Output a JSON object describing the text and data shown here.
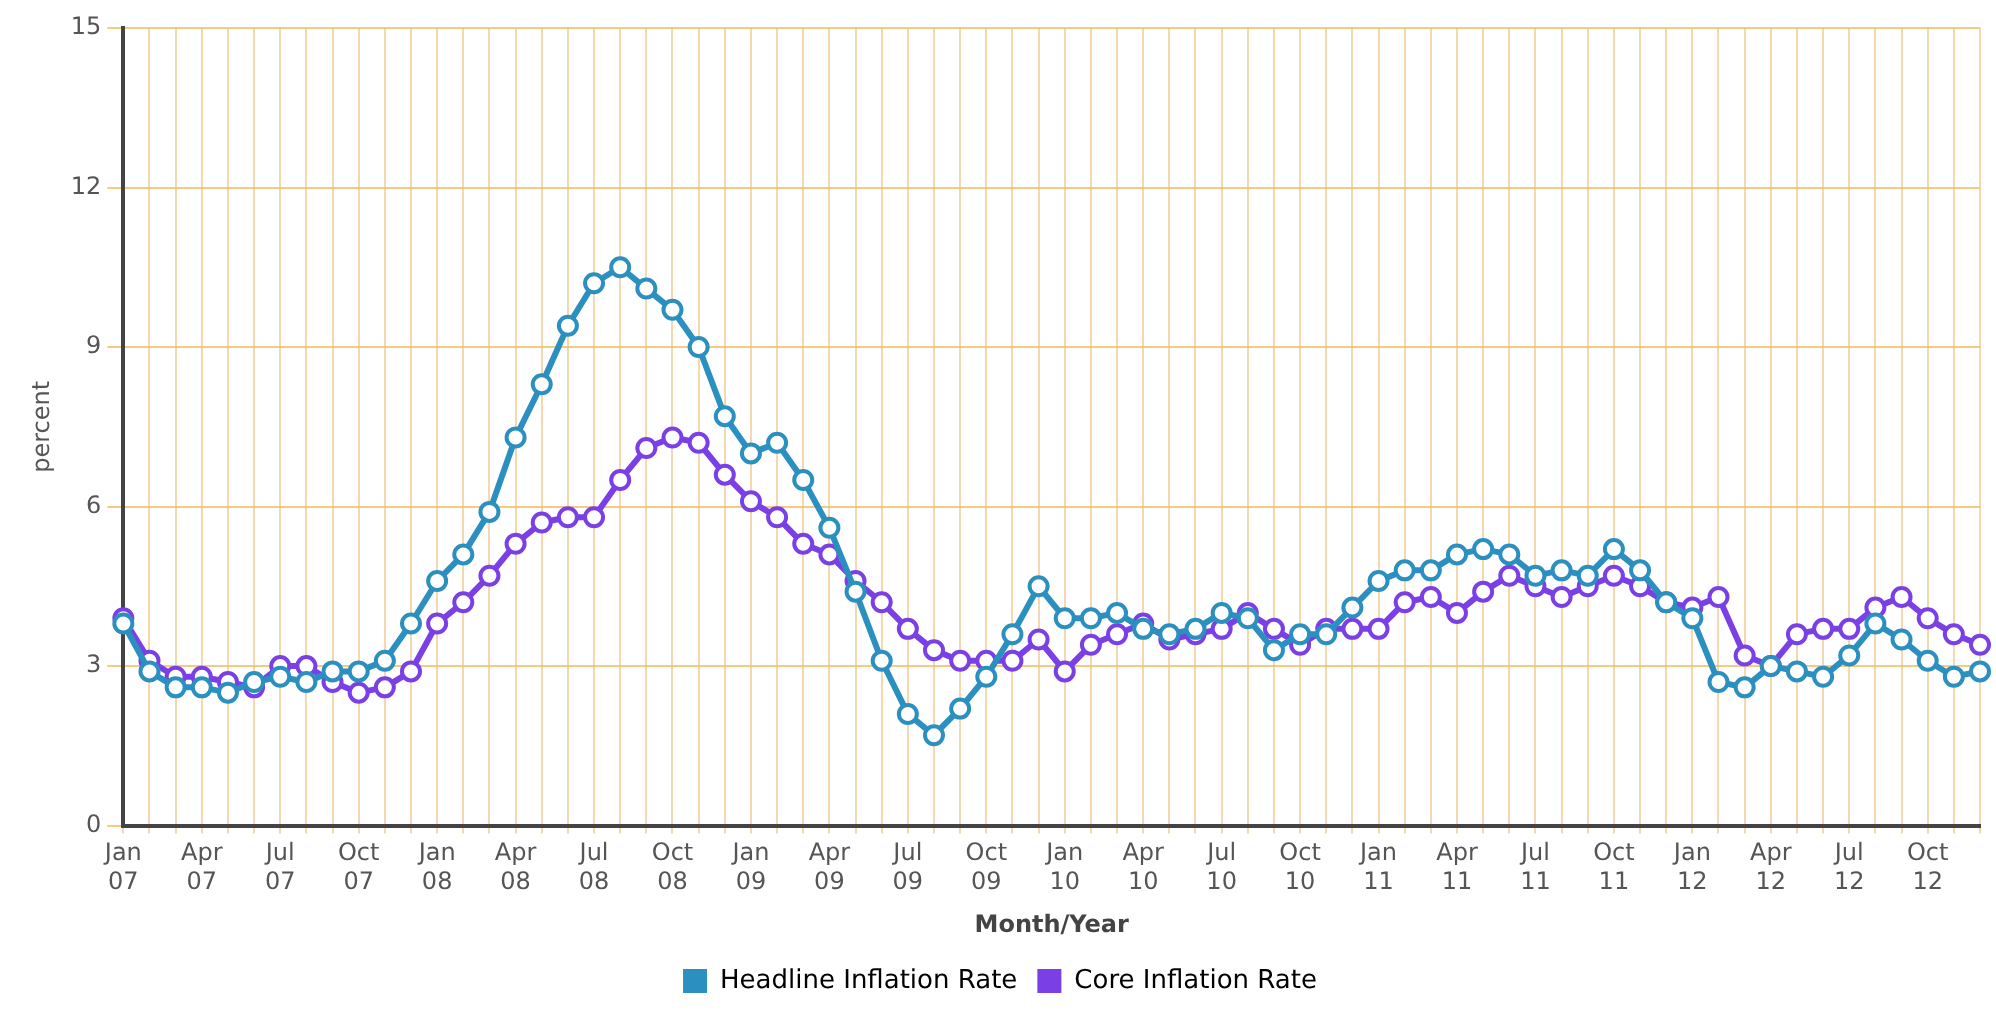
{
  "chart_data": {
    "type": "line",
    "xlabel": "Month/Year",
    "ylabel": "percent",
    "categories": [
      "Jan 07",
      null,
      null,
      "Apr 07",
      null,
      null,
      "Jul 07",
      null,
      null,
      "Oct 07",
      null,
      null,
      "Jan 08",
      null,
      null,
      "Apr 08",
      null,
      null,
      "Jul 08",
      null,
      null,
      "Oct 08",
      null,
      null,
      "Jan 09",
      null,
      null,
      "Apr 09",
      null,
      null,
      "Jul 09",
      null,
      null,
      "Oct 09",
      null,
      null,
      "Jan 10",
      null,
      null,
      "Apr 10",
      null,
      null,
      "Jul 10",
      null,
      null,
      "Oct 10",
      null,
      null,
      "Jan 11",
      null,
      null,
      "Apr 11",
      null,
      null,
      "Jul 11",
      null,
      null,
      "Oct 11",
      null,
      null,
      "Jan 12",
      null,
      null,
      "Apr 12",
      null,
      null,
      "Jul 12",
      null,
      null,
      "Oct 12",
      null,
      null
    ],
    "series": [
      {
        "name": "Headline Inflation Rate",
        "color": "#2b8fc0",
        "values": [
          3.8,
          2.9,
          2.6,
          2.6,
          2.5,
          2.7,
          2.8,
          2.7,
          2.9,
          2.9,
          3.1,
          3.8,
          4.6,
          5.1,
          5.9,
          7.3,
          8.3,
          9.4,
          10.2,
          10.5,
          10.1,
          9.7,
          9.0,
          7.7,
          7.0,
          7.2,
          6.5,
          5.6,
          4.4,
          3.1,
          2.1,
          1.7,
          2.2,
          2.8,
          3.6,
          4.5,
          3.9,
          3.9,
          4.0,
          3.7,
          3.6,
          3.7,
          4.0,
          3.9,
          3.3,
          3.6,
          3.6,
          4.1,
          4.6,
          4.8,
          4.8,
          5.1,
          5.2,
          5.1,
          4.7,
          4.8,
          4.7,
          5.2,
          4.8,
          4.2,
          3.9,
          2.7,
          2.6,
          3.0,
          2.9,
          2.8,
          3.2,
          3.8,
          3.5,
          3.1,
          2.8,
          2.9
        ]
      },
      {
        "name": "Core Inflation Rate",
        "color": "#7b3fe6",
        "values": [
          3.9,
          3.1,
          2.8,
          2.8,
          2.7,
          2.6,
          3.0,
          3.0,
          2.7,
          2.5,
          2.6,
          2.9,
          3.8,
          4.2,
          4.7,
          5.3,
          5.7,
          5.8,
          5.8,
          6.5,
          7.1,
          7.3,
          7.2,
          6.6,
          6.1,
          5.8,
          5.3,
          5.1,
          4.6,
          4.2,
          3.7,
          3.3,
          3.1,
          3.1,
          3.1,
          3.5,
          2.9,
          3.4,
          3.6,
          3.8,
          3.5,
          3.6,
          3.7,
          4.0,
          3.7,
          3.4,
          3.7,
          3.7,
          3.7,
          4.2,
          4.3,
          4.0,
          4.4,
          4.7,
          4.5,
          4.3,
          4.5,
          4.7,
          4.5,
          4.2,
          4.1,
          4.3,
          3.2,
          3.0,
          3.6,
          3.7,
          3.7,
          4.1,
          4.3,
          3.9,
          3.6,
          3.4
        ]
      }
    ],
    "ylim": [
      0,
      15
    ],
    "yticks": [
      0,
      3,
      6,
      9,
      12,
      15
    ],
    "grid": true,
    "legend": "bottom",
    "marker": "circle",
    "line_style": "solid"
  }
}
